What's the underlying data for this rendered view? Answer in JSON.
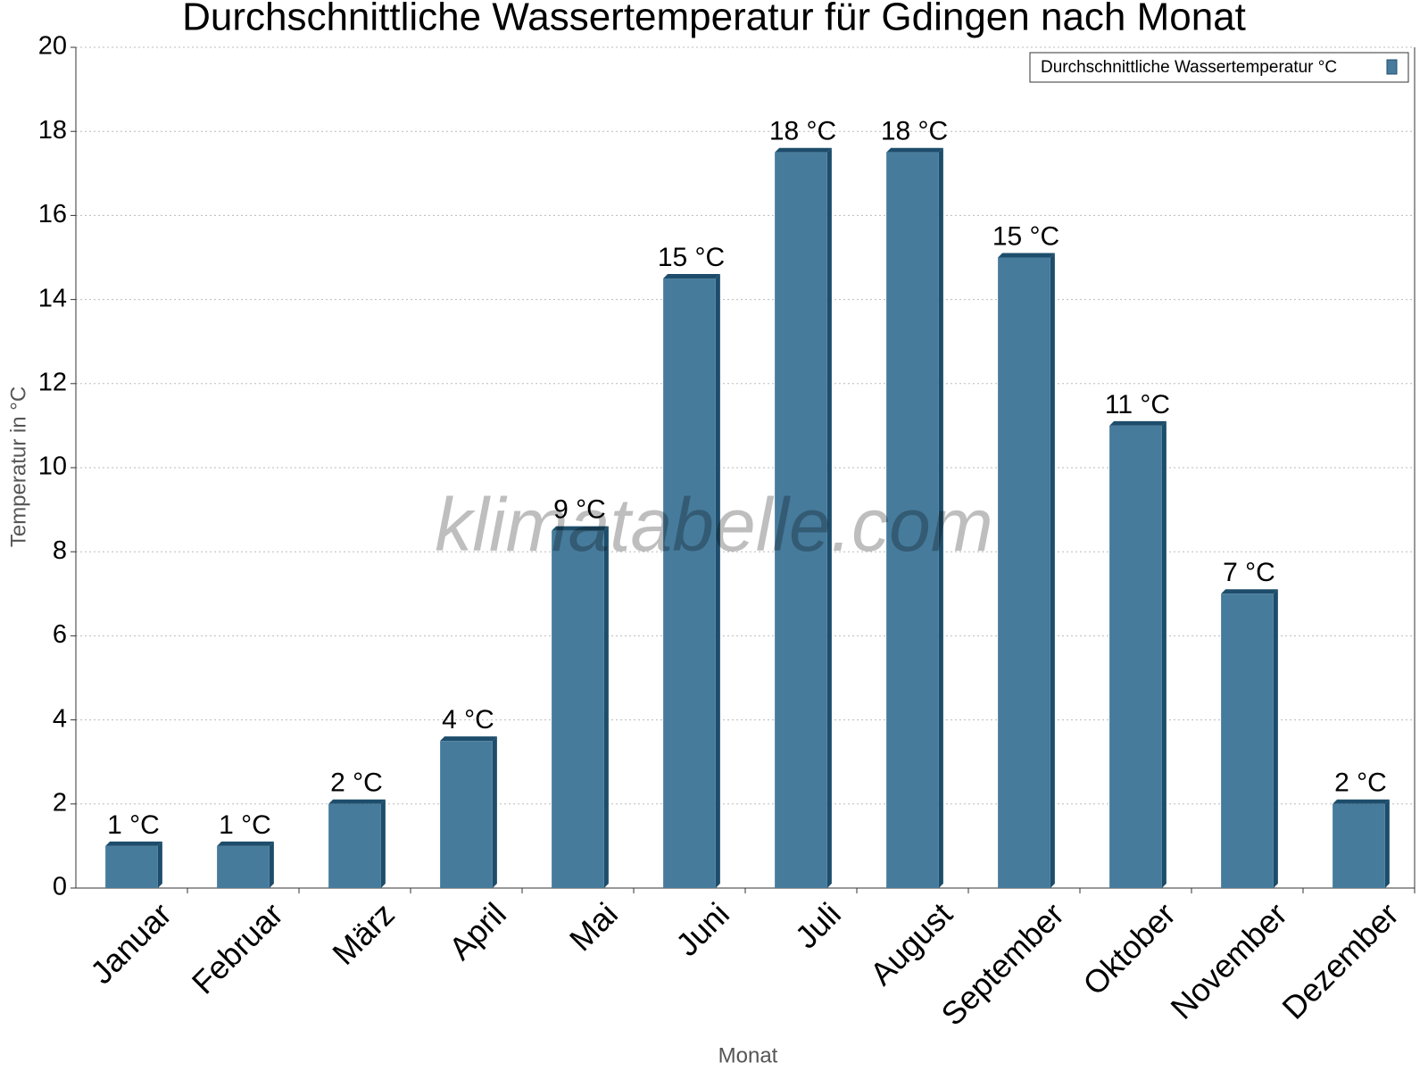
{
  "chart_data": {
    "type": "bar",
    "title": "Durchschnittliche Wassertemperatur für Gdingen nach Monat",
    "x_label": "Monat",
    "y_label": "Temperatur in °C",
    "watermark": "klimatabelle.com",
    "categories": [
      "Januar",
      "Februar",
      "März",
      "April",
      "Mai",
      "Juni",
      "Juli",
      "August",
      "September",
      "Oktober",
      "November",
      "Dezember"
    ],
    "series": [
      {
        "name": "Durchschnittliche Wassertemperatur °C",
        "color": "#467b9c",
        "values": [
          1,
          1,
          2,
          3.5,
          8.5,
          14.5,
          17.5,
          17.5,
          15,
          11,
          7,
          2
        ],
        "value_labels": [
          "1 °C",
          "1 °C",
          "2 °C",
          "4 °C",
          "9 °C",
          "15 °C",
          "18 °C",
          "18 °C",
          "15 °C",
          "11 °C",
          "7 °C",
          "2 °C"
        ]
      }
    ],
    "ylim": [
      0,
      20
    ],
    "yticks": [
      0,
      2,
      4,
      6,
      8,
      10,
      12,
      14,
      16,
      18,
      20
    ],
    "grid": true,
    "legend": "top-right"
  }
}
